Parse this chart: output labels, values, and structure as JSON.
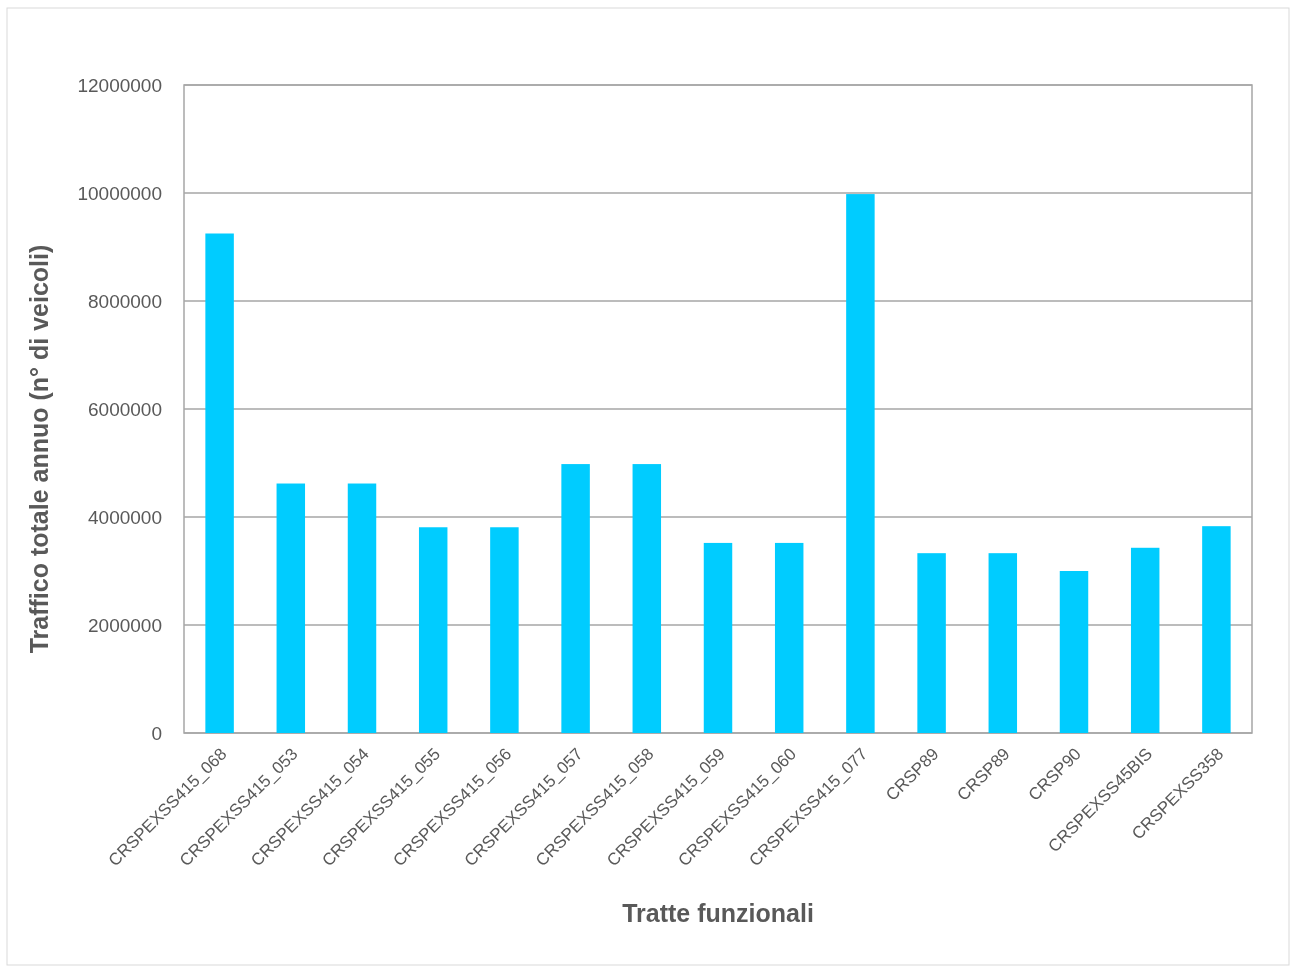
{
  "chart_data": {
    "type": "bar",
    "xlabel": "Tratte funzionali",
    "ylabel": "Traffico totale annuo (n° di veicoli)",
    "categories": [
      "CRSPEXSS415_068",
      "CRSPEXSS415_053",
      "CRSPEXSS415_054",
      "CRSPEXSS415_055",
      "CRSPEXSS415_056",
      "CRSPEXSS415_057",
      "CRSPEXSS415_058",
      "CRSPEXSS415_059",
      "CRSPEXSS415_060",
      "CRSPEXSS415_077",
      "CRSP89",
      "CRSP89",
      "CRSP90",
      "CRSPEXSS45BIS",
      "CRSPEXSS358"
    ],
    "values": [
      9250000,
      4620000,
      4620000,
      3810000,
      3810000,
      4980000,
      4980000,
      3520000,
      3520000,
      9980000,
      3330000,
      3330000,
      3000000,
      3430000,
      3830000
    ],
    "color": "#00ccff",
    "ylim": [
      0,
      12000000
    ],
    "yticks": [
      0,
      2000000,
      4000000,
      6000000,
      8000000,
      10000000,
      12000000
    ],
    "grid": "y"
  }
}
